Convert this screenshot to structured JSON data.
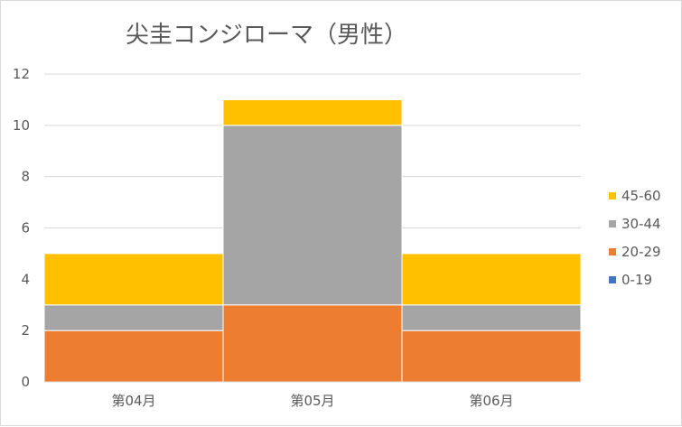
{
  "chart_data": {
    "type": "bar",
    "stacked": true,
    "title": "尖圭コンジローマ（男性）",
    "xlabel": "",
    "ylabel": "",
    "categories": [
      "第04月",
      "第05月",
      "第06月"
    ],
    "series": [
      {
        "name": "0-19",
        "values": [
          0,
          0,
          0
        ],
        "color": "#4472c4"
      },
      {
        "name": "20-29",
        "values": [
          2,
          3,
          2
        ],
        "color": "#ed7d31"
      },
      {
        "name": "30-44",
        "values": [
          1,
          7,
          1
        ],
        "color": "#a5a5a5"
      },
      {
        "name": "45-60",
        "values": [
          2,
          1,
          2
        ],
        "color": "#ffc000"
      }
    ],
    "ylim": [
      0,
      12
    ],
    "yticks": [
      "0",
      "2",
      "4",
      "6",
      "8",
      "10",
      "12"
    ],
    "grid": true,
    "legend_position": "right"
  }
}
